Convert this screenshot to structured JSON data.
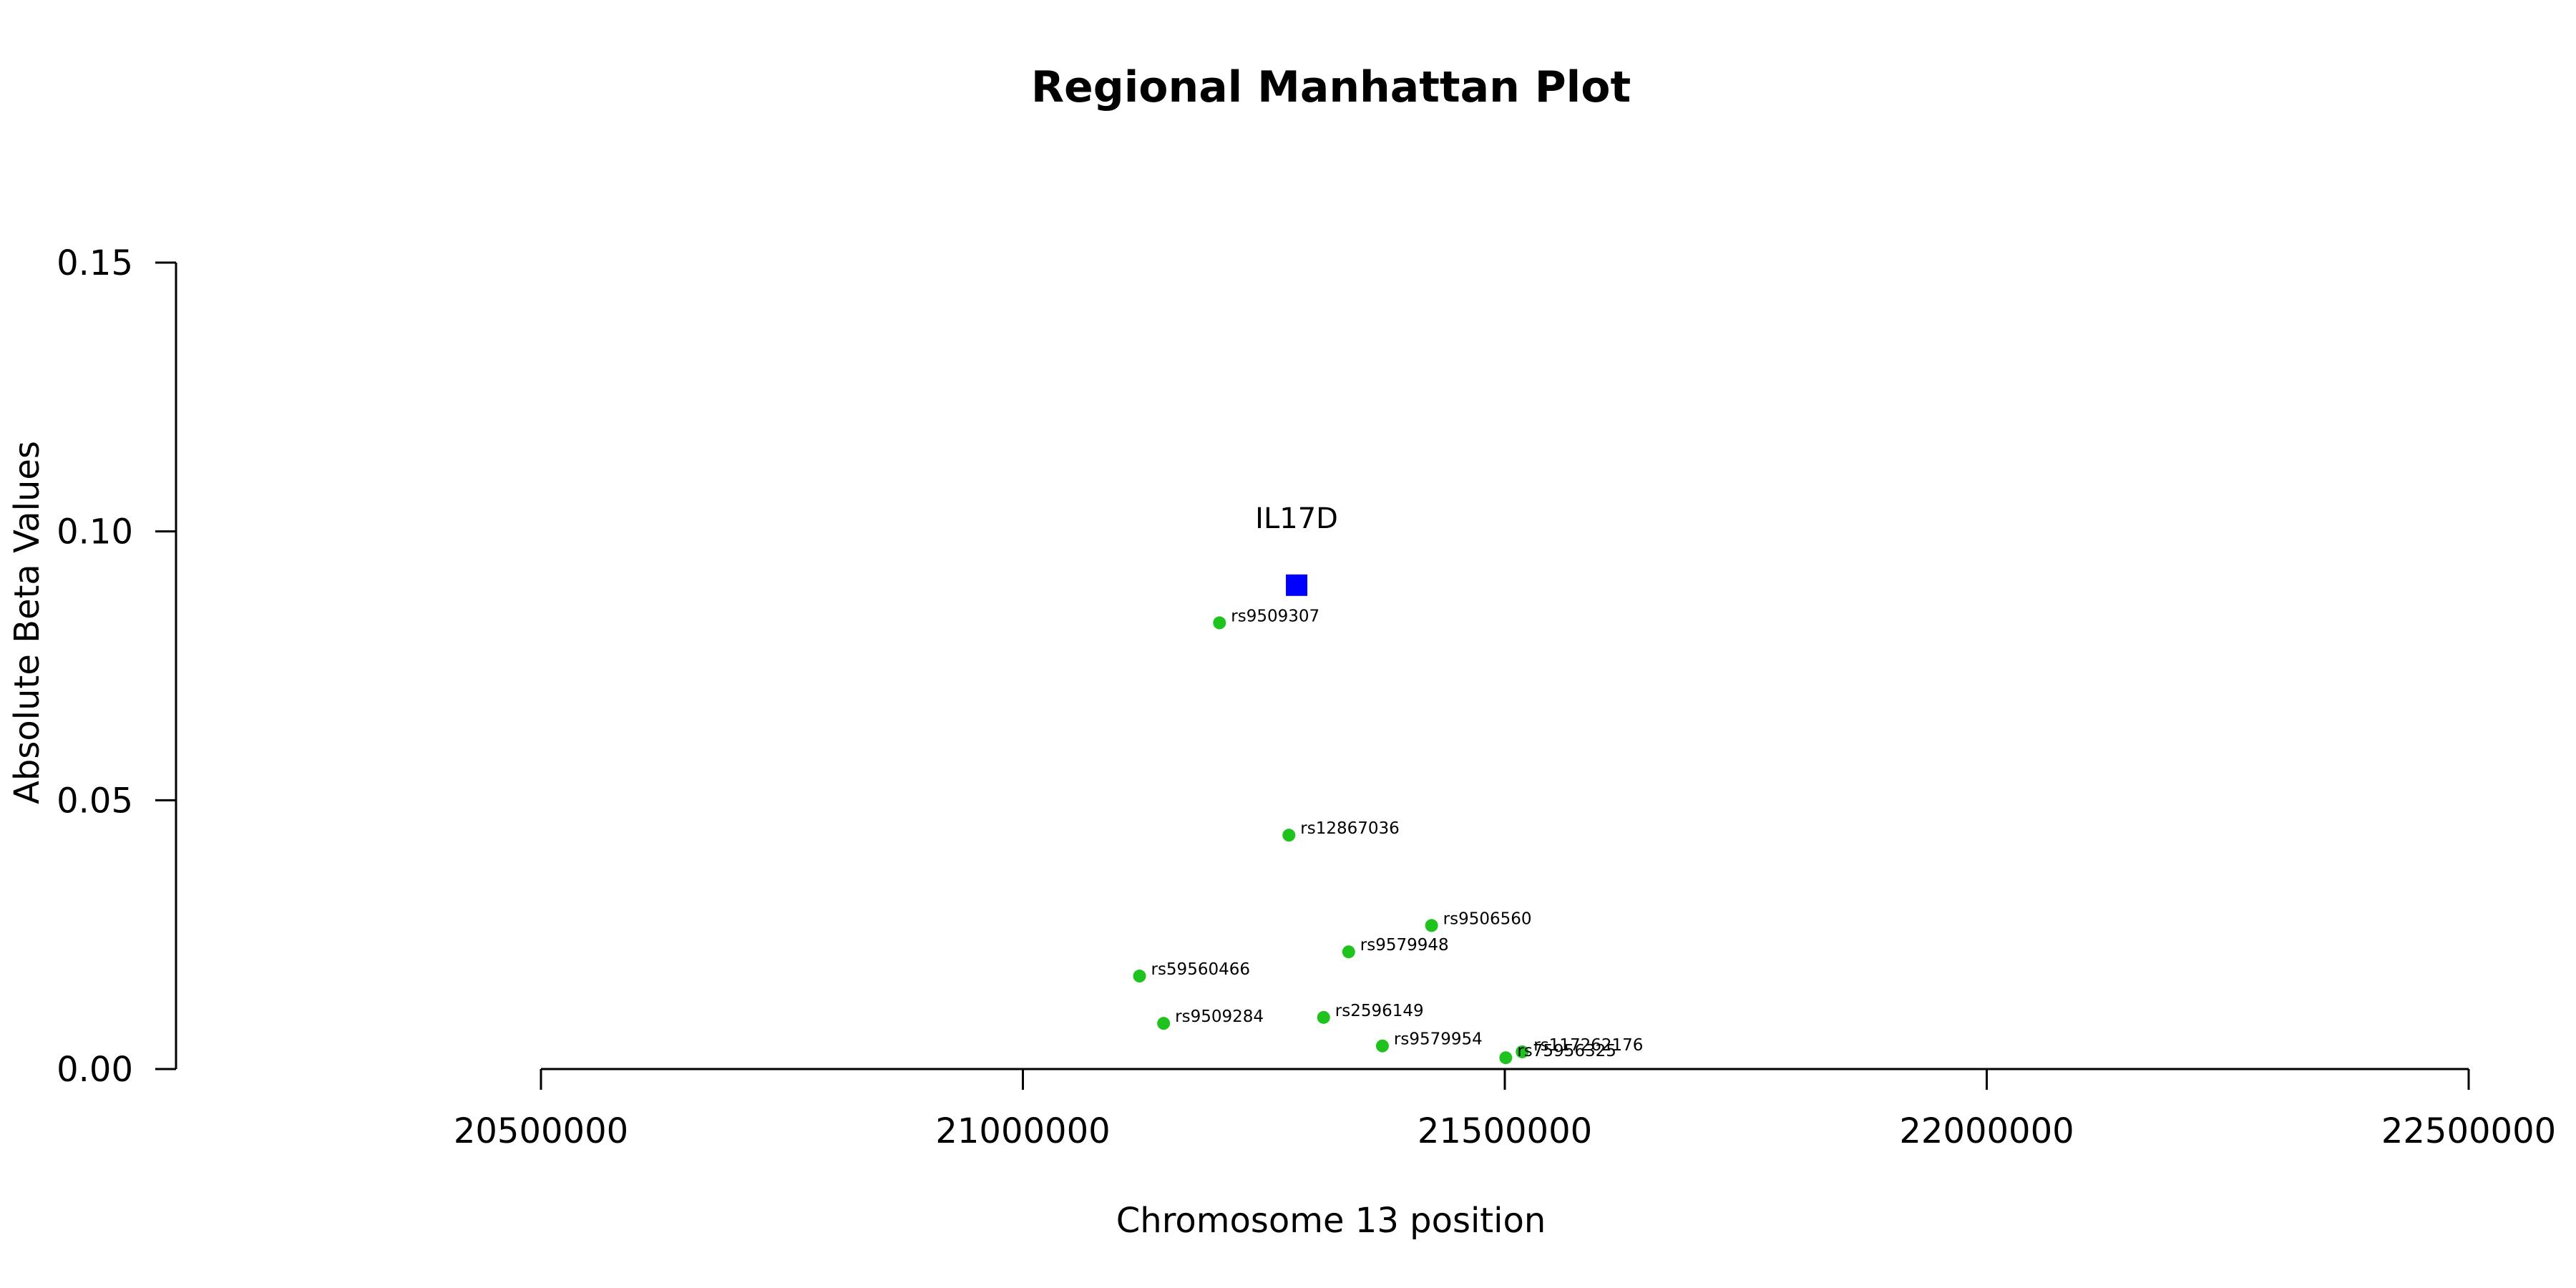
{
  "chart_data": {
    "type": "scatter",
    "title": "Regional Manhattan Plot",
    "xlabel": "Chromosome 13 position",
    "ylabel": "Absolute Beta Values",
    "xlim": [
      20500000,
      22500000
    ],
    "ylim": [
      0,
      0.15
    ],
    "x_ticks": [
      20500000,
      21000000,
      21500000,
      22000000,
      22500000
    ],
    "x_tick_labels": [
      "20500000",
      "21000000",
      "21500000",
      "22000000",
      "22500000"
    ],
    "y_ticks": [
      0,
      0.05,
      0.1,
      0.15
    ],
    "y_tick_labels": [
      "0.00",
      "0.05",
      "0.10",
      "0.15"
    ],
    "grid": false,
    "snp_color": "#1ec31e",
    "gene_color": "#0000ff",
    "snps": [
      {
        "label": "rs9509307",
        "x": 21204000,
        "y": 0.083
      },
      {
        "label": "rs12867036",
        "x": 21276000,
        "y": 0.0435
      },
      {
        "label": "rs9506560",
        "x": 21424000,
        "y": 0.0267
      },
      {
        "label": "rs9579948",
        "x": 21338000,
        "y": 0.0218
      },
      {
        "label": "rs59560466",
        "x": 21121000,
        "y": 0.0173
      },
      {
        "label": "rs2596149",
        "x": 21312000,
        "y": 0.0096
      },
      {
        "label": "rs9509284",
        "x": 21146000,
        "y": 0.0085
      },
      {
        "label": "rs9579954",
        "x": 21373000,
        "y": 0.0043
      },
      {
        "label": "rs117262176",
        "x": 21518000,
        "y": 0.0032
      },
      {
        "label": "rs75956325",
        "x": 21501000,
        "y": 0.0021
      }
    ],
    "genes": [
      {
        "label": "IL17D",
        "x": 21284000,
        "y": 0.09
      }
    ]
  }
}
